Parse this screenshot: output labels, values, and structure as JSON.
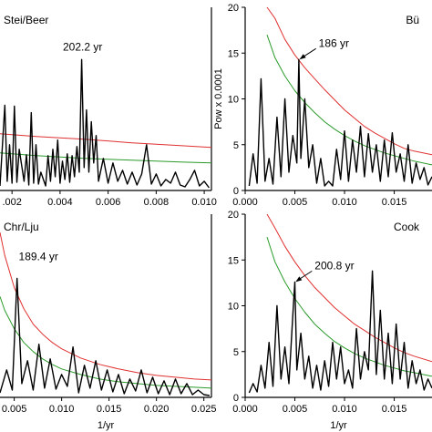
{
  "chart_data": [
    {
      "type": "line",
      "panel_label": "Stei/Beer",
      "panel_label_position": "top-left",
      "xlabel": "",
      "ylabel": "",
      "xlim": [
        0.0015,
        0.0103
      ],
      "ylim": [
        0,
        20
      ],
      "x_ticks": [
        {
          "value": 0.002,
          "label": ".002"
        },
        {
          "value": 0.004,
          "label": "0.004"
        },
        {
          "value": 0.006,
          "label": "0.006"
        },
        {
          "value": 0.008,
          "label": "0.008"
        },
        {
          "value": 0.01,
          "label": "0.010"
        }
      ],
      "y_ticks": [],
      "annotation": {
        "text": "202.2 yr",
        "x": 0.00494,
        "y": 14.3
      },
      "series": [
        {
          "color": "#e03030",
          "x": [
            0.0015,
            0.003,
            0.005,
            0.007,
            0.009,
            0.0103
          ],
          "y": [
            6.2,
            5.9,
            5.6,
            5.2,
            4.9,
            4.7
          ]
        },
        {
          "color": "#2a9a2a",
          "x": [
            0.0015,
            0.003,
            0.005,
            0.007,
            0.009,
            0.0103
          ],
          "y": [
            4.1,
            3.8,
            3.5,
            3.3,
            3.1,
            3.0
          ]
        },
        {
          "color": "#000000",
          "x": [
            0.0015,
            0.0017,
            0.0018,
            0.0019,
            0.002,
            0.0021,
            0.0022,
            0.0023,
            0.0025,
            0.0026,
            0.0027,
            0.0028,
            0.0029,
            0.003,
            0.0031,
            0.0032,
            0.0034,
            0.0035,
            0.0036,
            0.0037,
            0.0038,
            0.0039,
            0.004,
            0.0041,
            0.0042,
            0.0043,
            0.0044,
            0.0045,
            0.0046,
            0.0047,
            0.0048,
            0.0049,
            0.005,
            0.0051,
            0.0052,
            0.0053,
            0.0054,
            0.0055,
            0.0056,
            0.0058,
            0.006,
            0.0062,
            0.0064,
            0.0066,
            0.0068,
            0.007,
            0.0072,
            0.0074,
            0.0076,
            0.0078,
            0.008,
            0.0082,
            0.0084,
            0.0086,
            0.0088,
            0.009,
            0.0092,
            0.0094,
            0.0096,
            0.0098,
            0.01,
            0.0102
          ],
          "y": [
            0.5,
            9.3,
            1.0,
            5.0,
            0.8,
            9.2,
            0.9,
            4.5,
            1.0,
            3.9,
            0.6,
            8.5,
            0.8,
            5.0,
            0.7,
            2.0,
            0.5,
            3.8,
            1.0,
            4.5,
            1.5,
            5.5,
            0.8,
            3.2,
            1.2,
            4.0,
            0.9,
            3.8,
            1.5,
            4.8,
            2.0,
            14.3,
            2.5,
            8.8,
            2.0,
            7.5,
            3.0,
            6.0,
            1.0,
            3.5,
            0.8,
            3.0,
            1.0,
            2.2,
            0.7,
            2.0,
            0.6,
            1.8,
            5.0,
            0.7,
            1.8,
            0.5,
            1.2,
            0.8,
            2.0,
            0.6,
            0.4,
            1.2,
            2.2,
            0.5,
            1.0,
            0.3
          ]
        }
      ]
    },
    {
      "type": "line",
      "panel_label": "Bü",
      "panel_label_position": "top-right",
      "xlabel": "",
      "ylabel": "Pow x 0.0001",
      "xlim": [
        0,
        0.0188
      ],
      "ylim": [
        0,
        20
      ],
      "x_ticks": [
        {
          "value": 0.0,
          "label": "0.000"
        },
        {
          "value": 0.005,
          "label": "0.005"
        },
        {
          "value": 0.01,
          "label": "0.010"
        },
        {
          "value": 0.015,
          "label": "0.015"
        }
      ],
      "y_ticks": [
        {
          "value": 0,
          "label": "0"
        },
        {
          "value": 5,
          "label": "5"
        },
        {
          "value": 10,
          "label": "10"
        },
        {
          "value": 15,
          "label": "15"
        },
        {
          "value": 20,
          "label": "20"
        }
      ],
      "annotation": {
        "text": "186 yr",
        "x": 0.00538,
        "y": 14.3
      },
      "series": [
        {
          "color": "#e03030",
          "x": [
            0.0022,
            0.003,
            0.004,
            0.005,
            0.006,
            0.007,
            0.008,
            0.009,
            0.01,
            0.011,
            0.012,
            0.013,
            0.014,
            0.015,
            0.016,
            0.017,
            0.0188
          ],
          "y": [
            20,
            18.8,
            16.5,
            14.8,
            13.4,
            12.2,
            11.0,
            9.9,
            8.8,
            7.9,
            7.0,
            6.3,
            5.7,
            5.1,
            4.6,
            4.3,
            3.9
          ]
        },
        {
          "color": "#2a9a2a",
          "x": [
            0.0022,
            0.003,
            0.004,
            0.005,
            0.006,
            0.007,
            0.008,
            0.009,
            0.01,
            0.011,
            0.012,
            0.013,
            0.014,
            0.015,
            0.016,
            0.017,
            0.0188
          ],
          "y": [
            17.0,
            14.5,
            12.5,
            10.9,
            9.6,
            8.5,
            7.5,
            6.7,
            6.0,
            5.4,
            4.9,
            4.5,
            4.1,
            3.8,
            3.5,
            3.2,
            2.8
          ]
        },
        {
          "color": "#000000",
          "x": [
            0.0004,
            0.0008,
            0.0012,
            0.0016,
            0.002,
            0.0024,
            0.0028,
            0.0032,
            0.0036,
            0.004,
            0.0044,
            0.0048,
            0.0052,
            0.0054,
            0.0056,
            0.006,
            0.0064,
            0.0068,
            0.0072,
            0.0076,
            0.008,
            0.0084,
            0.0088,
            0.0092,
            0.0096,
            0.01,
            0.0104,
            0.0108,
            0.0112,
            0.0116,
            0.012,
            0.0124,
            0.0128,
            0.0132,
            0.0136,
            0.014,
            0.0144,
            0.0148,
            0.0152,
            0.0156,
            0.016,
            0.0164,
            0.0168,
            0.0172,
            0.0176,
            0.018,
            0.0184,
            0.0188
          ],
          "y": [
            0.5,
            4.0,
            0.8,
            12.2,
            1.0,
            3.5,
            0.7,
            8.0,
            1.5,
            10.0,
            2.0,
            6.0,
            3.0,
            14.3,
            3.5,
            10.0,
            2.5,
            5.0,
            0.8,
            3.5,
            0.5,
            1.0,
            0.5,
            4.5,
            1.2,
            6.5,
            1.0,
            5.5,
            2.0,
            7.0,
            1.5,
            6.2,
            2.0,
            5.0,
            1.0,
            5.5,
            1.5,
            6.3,
            2.0,
            4.0,
            1.0,
            5.0,
            0.8,
            3.0,
            1.2,
            2.5,
            0.6,
            1.5
          ]
        }
      ]
    },
    {
      "type": "line",
      "panel_label": "Chr/Lju",
      "panel_label_position": "top-left",
      "xlabel": "1/yr",
      "ylabel": "",
      "xlim": [
        0.0035,
        0.0258
      ],
      "ylim": [
        0,
        20
      ],
      "x_ticks": [
        {
          "value": 0.005,
          "label": "0.005"
        },
        {
          "value": 0.01,
          "label": "0.010"
        },
        {
          "value": 0.015,
          "label": "0.015"
        },
        {
          "value": 0.02,
          "label": "0.020"
        },
        {
          "value": 0.025,
          "label": "0.025"
        }
      ],
      "y_ticks": [],
      "annotation": {
        "text": "189.4 yr",
        "x": 0.00528,
        "y": 13.0
      },
      "series": [
        {
          "color": "#e03030",
          "x": [
            0.0035,
            0.004,
            0.005,
            0.006,
            0.007,
            0.008,
            0.009,
            0.01,
            0.012,
            0.014,
            0.016,
            0.018,
            0.02,
            0.022,
            0.024,
            0.0258
          ],
          "y": [
            18.0,
            15.5,
            12.0,
            9.7,
            8.0,
            6.9,
            6.0,
            5.3,
            4.3,
            3.6,
            3.1,
            2.7,
            2.4,
            2.2,
            2.0,
            1.9
          ]
        },
        {
          "color": "#2a9a2a",
          "x": [
            0.0035,
            0.004,
            0.005,
            0.006,
            0.007,
            0.008,
            0.009,
            0.01,
            0.012,
            0.014,
            0.016,
            0.018,
            0.02,
            0.022,
            0.024,
            0.0258
          ],
          "y": [
            11.0,
            9.5,
            7.5,
            6.0,
            5.0,
            4.2,
            3.6,
            3.1,
            2.5,
            2.0,
            1.7,
            1.5,
            1.3,
            1.2,
            1.1,
            1.0
          ]
        },
        {
          "color": "#000000",
          "x": [
            0.0035,
            0.0042,
            0.0048,
            0.0053,
            0.0058,
            0.0064,
            0.007,
            0.0076,
            0.0082,
            0.0088,
            0.0094,
            0.01,
            0.0106,
            0.0112,
            0.0118,
            0.0124,
            0.013,
            0.0136,
            0.0142,
            0.0148,
            0.0154,
            0.016,
            0.0166,
            0.0172,
            0.0178,
            0.0184,
            0.019,
            0.0196,
            0.0202,
            0.0208,
            0.0214,
            0.022,
            0.0226,
            0.0232,
            0.0238,
            0.0244,
            0.025,
            0.0256
          ],
          "y": [
            0.5,
            3.0,
            0.8,
            13.0,
            1.5,
            4.0,
            0.8,
            5.8,
            1.0,
            4.2,
            0.9,
            2.5,
            1.2,
            5.5,
            0.5,
            3.5,
            1.0,
            4.0,
            0.8,
            3.0,
            0.6,
            2.5,
            0.4,
            2.0,
            0.7,
            3.0,
            0.5,
            2.2,
            0.4,
            1.8,
            0.3,
            2.0,
            0.4,
            1.5,
            0.3,
            0.8,
            0.3,
            0.2
          ]
        }
      ]
    },
    {
      "type": "line",
      "panel_label": "Cook",
      "panel_label_position": "top-right",
      "xlabel": "1/yr",
      "ylabel": "",
      "xlim": [
        0,
        0.0188
      ],
      "ylim": [
        0,
        20
      ],
      "x_ticks": [
        {
          "value": 0.0,
          "label": "0.000"
        },
        {
          "value": 0.005,
          "label": "0.005"
        },
        {
          "value": 0.01,
          "label": "0.010"
        },
        {
          "value": 0.015,
          "label": "0.015"
        }
      ],
      "y_ticks": [
        {
          "value": 0,
          "label": "0"
        },
        {
          "value": 5,
          "label": "5"
        },
        {
          "value": 10,
          "label": "10"
        },
        {
          "value": 15,
          "label": "15"
        },
        {
          "value": 20,
          "label": "20"
        }
      ],
      "annotation": {
        "text": "200.8 yr",
        "x": 0.00498,
        "y": 12.6
      },
      "series": [
        {
          "color": "#e03030",
          "x": [
            0.0022,
            0.003,
            0.004,
            0.005,
            0.006,
            0.007,
            0.008,
            0.009,
            0.01,
            0.011,
            0.012,
            0.013,
            0.014,
            0.015,
            0.016,
            0.017,
            0.0188
          ],
          "y": [
            20,
            18.5,
            16.5,
            14.8,
            13.3,
            12.0,
            10.9,
            9.8,
            8.9,
            8.0,
            7.3,
            6.6,
            6.0,
            5.4,
            4.9,
            4.5,
            3.9
          ]
        },
        {
          "color": "#2a9a2a",
          "x": [
            0.0022,
            0.003,
            0.004,
            0.005,
            0.006,
            0.007,
            0.008,
            0.009,
            0.01,
            0.011,
            0.012,
            0.013,
            0.014,
            0.015,
            0.016,
            0.017,
            0.0188
          ],
          "y": [
            17.5,
            14.8,
            12.6,
            10.8,
            9.3,
            8.0,
            7.0,
            6.1,
            5.4,
            4.8,
            4.3,
            3.9,
            3.5,
            3.2,
            2.9,
            2.7,
            2.3
          ]
        },
        {
          "color": "#000000",
          "x": [
            0.0004,
            0.0008,
            0.0012,
            0.0016,
            0.002,
            0.0024,
            0.0028,
            0.0032,
            0.0036,
            0.004,
            0.0044,
            0.0048,
            0.005,
            0.0052,
            0.0056,
            0.006,
            0.0064,
            0.0068,
            0.0072,
            0.0076,
            0.008,
            0.0084,
            0.0088,
            0.0092,
            0.0096,
            0.01,
            0.0104,
            0.0108,
            0.0112,
            0.0116,
            0.012,
            0.0124,
            0.0128,
            0.0132,
            0.0136,
            0.014,
            0.0144,
            0.0148,
            0.0152,
            0.0156,
            0.016,
            0.0164,
            0.0168,
            0.0172,
            0.0176,
            0.018,
            0.0184,
            0.0188
          ],
          "y": [
            0.5,
            1.5,
            0.6,
            3.5,
            1.0,
            6.0,
            1.2,
            10.0,
            2.0,
            5.5,
            1.5,
            9.0,
            12.6,
            3.0,
            7.0,
            2.0,
            4.5,
            1.0,
            3.5,
            0.8,
            4.0,
            1.2,
            6.0,
            2.0,
            5.5,
            1.5,
            3.0,
            1.0,
            7.5,
            2.0,
            5.0,
            3.0,
            13.8,
            2.5,
            9.5,
            2.0,
            7.0,
            1.5,
            8.0,
            2.0,
            6.0,
            1.0,
            4.0,
            1.5,
            3.0,
            0.8,
            2.0,
            1.0
          ]
        }
      ]
    }
  ]
}
